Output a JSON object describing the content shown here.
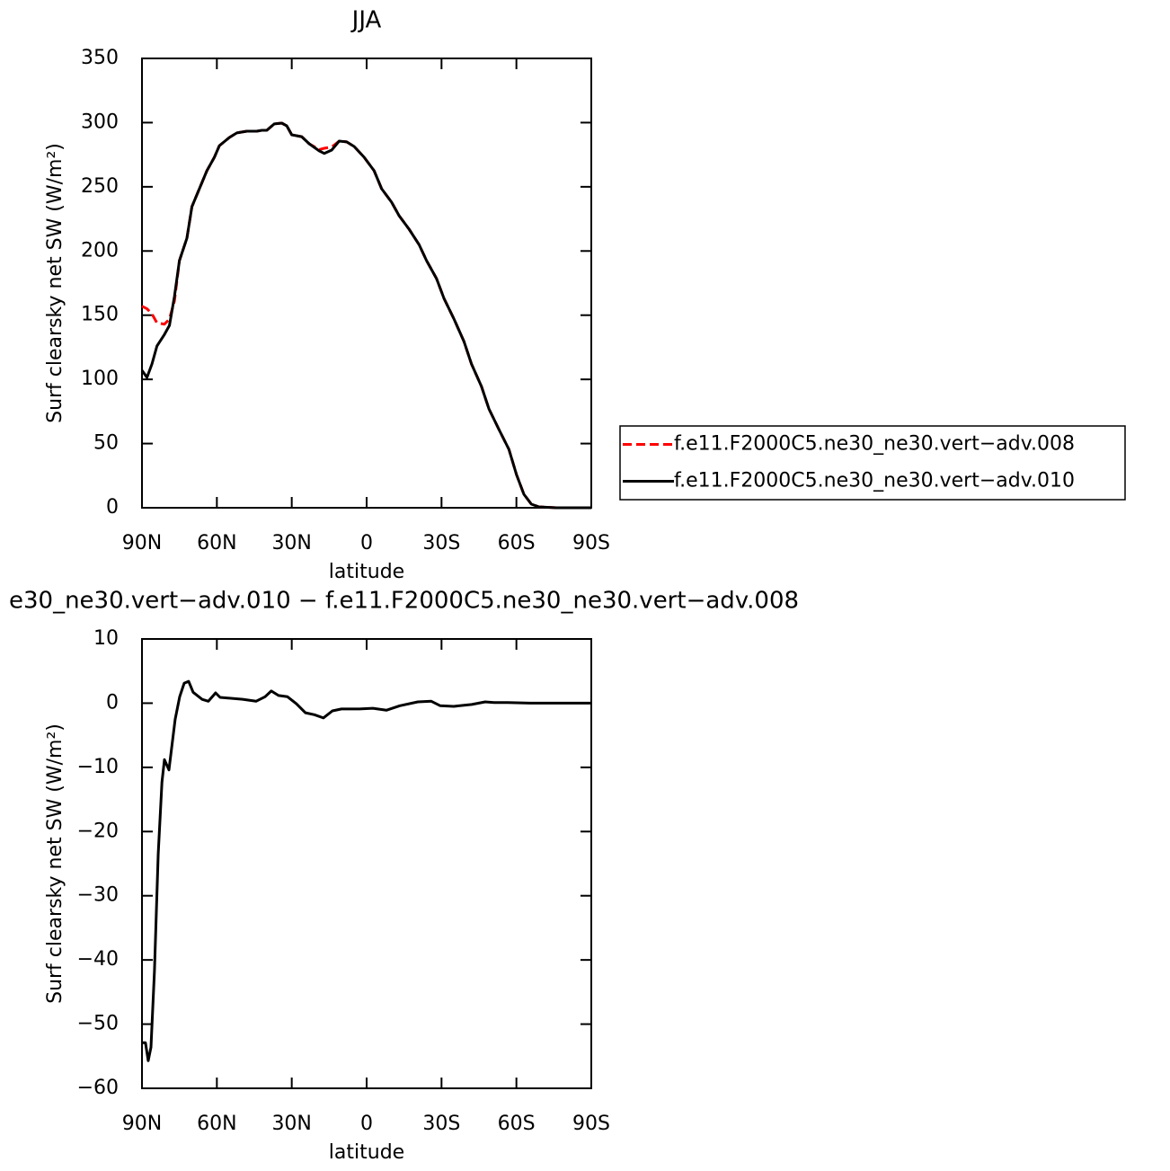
{
  "chart_data": [
    {
      "type": "line",
      "title": "JJA",
      "xlabel": "latitude",
      "ylabel": "Surf clearsky net SW (W/m²)",
      "x": [
        90,
        88,
        86,
        84,
        81,
        79,
        77,
        75,
        72,
        70,
        67,
        64,
        61,
        59,
        55,
        52,
        48,
        44,
        42,
        40,
        37,
        34,
        32,
        30,
        26,
        23,
        19,
        17,
        14,
        11,
        8,
        5,
        1,
        -3,
        -6,
        -10,
        -13,
        -17,
        -21,
        -24,
        -28,
        -31,
        -35,
        -39,
        -42,
        -46,
        -49,
        -53,
        -57,
        -60,
        -63,
        -66,
        -69,
        -76,
        -90
      ],
      "series": [
        {
          "name": "f.e11.F2000C5.ne30_ne30.vert−adv.008",
          "color": "#ff0000",
          "line_style": "dashed",
          "values": [
            157,
            155,
            151,
            144,
            143,
            147,
            161,
            192.5,
            210,
            234.5,
            248.5,
            262.5,
            273,
            282,
            288.4,
            292,
            293.3,
            293.3,
            294,
            294,
            299,
            299.6,
            297.5,
            290.5,
            289,
            283.5,
            279,
            280,
            281,
            285.6,
            285,
            281.4,
            273,
            262.5,
            248.5,
            238,
            227.5,
            217,
            205,
            192.5,
            178.5,
            163,
            147,
            129.5,
            112,
            94.5,
            77,
            61,
            45.5,
            26,
            10.5,
            2.8,
            0.7,
            0,
            0
          ]
        },
        {
          "name": "f.e11.F2000C5.ne30_ne30.vert−adv.010",
          "color": "#000000",
          "line_style": "solid",
          "values": [
            107,
            101.5,
            112,
            126,
            135,
            142,
            164.5,
            192.5,
            210,
            234.5,
            248.5,
            262.5,
            273,
            282,
            288.4,
            292,
            293.3,
            293.3,
            294,
            294,
            299,
            299.6,
            297.5,
            290.5,
            289,
            283.5,
            278,
            276,
            278.6,
            285.6,
            285,
            281.4,
            273,
            262.5,
            248.5,
            238,
            227.5,
            217,
            205,
            192.5,
            178.5,
            163,
            147,
            129.5,
            112,
            94.5,
            77,
            61,
            45.5,
            26,
            10.5,
            2.8,
            0.7,
            0,
            0
          ]
        }
      ],
      "xlim": [
        90,
        -90
      ],
      "xticks": [
        {
          "value": 90,
          "label": "90N"
        },
        {
          "value": 60,
          "label": "60N"
        },
        {
          "value": 30,
          "label": "30N"
        },
        0,
        {
          "value": -30,
          "label": "30S"
        },
        {
          "value": -60,
          "label": "60S"
        },
        {
          "value": -90,
          "label": "90S"
        }
      ],
      "ylim": [
        0,
        350
      ],
      "yticks": [
        0,
        50,
        100,
        150,
        200,
        250,
        300,
        350
      ],
      "legend": "right"
    },
    {
      "type": "line",
      "title": "e30_ne30.vert−adv.010 − f.e11.F2000C5.ne30_ne30.vert−adv.008",
      "xlabel": "latitude",
      "ylabel": "Surf clearsky net SW (W/m²)",
      "x": [
        90,
        88.6,
        87.5,
        86.4,
        85,
        83.5,
        82,
        81,
        79.2,
        76.7,
        74.9,
        73.1,
        71.3,
        69.5,
        65.9,
        63.4,
        60.5,
        58.7,
        49.7,
        44.3,
        40.7,
        38.2,
        35.3,
        31.7,
        28.1,
        24.5,
        20.9,
        17.3,
        13.7,
        10.1,
        2.9,
        -2.5,
        -7.9,
        -13.3,
        -20.5,
        -25.9,
        -29.5,
        -34.9,
        -42.1,
        -47.5,
        -51.1,
        -56.5,
        -65.5,
        -90
      ],
      "series": [
        {
          "color": "#000000",
          "line_style": "solid",
          "values": [
            -52.9,
            -52.9,
            -55.7,
            -53.6,
            -41.7,
            -23.5,
            -12.3,
            -8.8,
            -10.4,
            -2.5,
            1,
            3.1,
            3.4,
            1.7,
            0.6,
            0.3,
            1.6,
            0.9,
            0.6,
            0.3,
            1,
            1.9,
            1.2,
            1,
            -0.1,
            -1.5,
            -1.8,
            -2.3,
            -1.2,
            -0.9,
            -0.9,
            -0.8,
            -1.1,
            -0.4,
            0.2,
            0.3,
            -0.4,
            -0.5,
            -0.2,
            0.2,
            0.1,
            0.1,
            0,
            0
          ]
        }
      ],
      "xlim": [
        90,
        -90
      ],
      "xticks": [
        {
          "value": 90,
          "label": "90N"
        },
        {
          "value": 60,
          "label": "60N"
        },
        {
          "value": 30,
          "label": "30N"
        },
        0,
        {
          "value": -30,
          "label": "30S"
        },
        {
          "value": -60,
          "label": "60S"
        },
        {
          "value": -90,
          "label": "90S"
        }
      ],
      "ylim": [
        -60,
        10
      ],
      "yticks": [
        {
          "value": -60,
          "label": "−60"
        },
        {
          "value": -50,
          "label": "−50"
        },
        {
          "value": -40,
          "label": "−40"
        },
        {
          "value": -30,
          "label": "−30"
        },
        {
          "value": -20,
          "label": "−20"
        },
        {
          "value": -10,
          "label": "−10"
        },
        0,
        10
      ]
    }
  ]
}
